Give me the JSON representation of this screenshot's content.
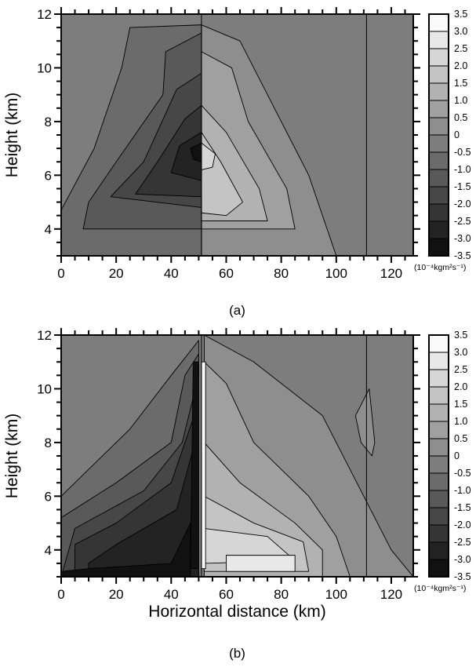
{
  "chart_data": [
    {
      "type": "heatmap",
      "panel_label": "(a)",
      "xlabel": "",
      "ylabel": "Height (km)",
      "xlim": [
        0,
        128
      ],
      "ylim": [
        3,
        12
      ],
      "xticks": [
        "0",
        "20",
        "40",
        "60",
        "80",
        "100",
        "120"
      ],
      "yticks": [
        "4",
        "6",
        "8",
        "10",
        "12"
      ],
      "vertical_lines_km": [
        51,
        111
      ],
      "colorbar": {
        "levels": [
          "3.5",
          "3.0",
          "2.5",
          "2.0",
          "1.5",
          "1.0",
          "0.5",
          "0",
          "-0.5",
          "-1.0",
          "-1.5",
          "-2.0",
          "-2.5",
          "-3.0",
          "-3.5"
        ],
        "units": "(10⁻⁴kgm²s⁻¹)"
      },
      "features": {
        "min_value": -3.0,
        "min_location_km": [
          48,
          6.8
        ],
        "max_value": 2.0,
        "max_location_km": [
          53,
          6.7
        ]
      }
    },
    {
      "type": "heatmap",
      "panel_label": "(b)",
      "xlabel": "Horizontal distance (km)",
      "ylabel": "Height (km)",
      "xlim": [
        0,
        128
      ],
      "ylim": [
        3,
        12
      ],
      "xticks": [
        "0",
        "20",
        "40",
        "60",
        "80",
        "100",
        "120"
      ],
      "yticks": [
        "4",
        "6",
        "8",
        "10",
        "12"
      ],
      "vertical_lines_km": [
        51,
        111
      ],
      "colorbar": {
        "levels": [
          "3.5",
          "3.0",
          "2.5",
          "2.0",
          "1.5",
          "1.0",
          "0.5",
          "0",
          "-0.5",
          "-1.0",
          "-1.5",
          "-2.0",
          "-2.5",
          "-3.0",
          "-3.5"
        ],
        "units": "(10⁻⁴kgm²s⁻¹)"
      },
      "features": {
        "min_value": -3.5,
        "min_location_km": [
          15,
          3.2
        ],
        "max_value": 3.5,
        "max_location_km": [
          80,
          3.5
        ]
      }
    }
  ]
}
